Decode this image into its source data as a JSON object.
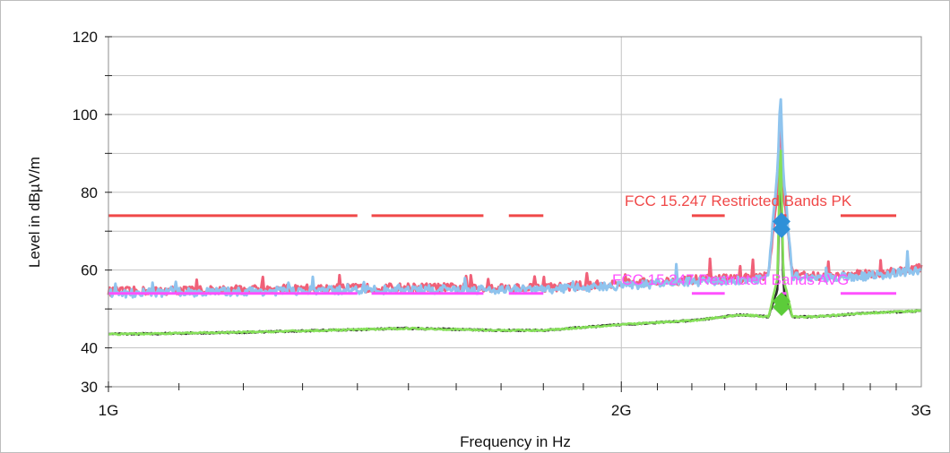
{
  "chart_data": {
    "type": "line",
    "xlabel": "Frequency in Hz",
    "ylabel": "Level in dBµV/m",
    "x_scale": "log",
    "xlim": [
      1000000000,
      3000000000
    ],
    "ylim": [
      30,
      120
    ],
    "x_ticks": [
      {
        "value": 1000000000,
        "label": "1G"
      },
      {
        "value": 2000000000,
        "label": "2G"
      },
      {
        "value": 3000000000,
        "label": "3G"
      }
    ],
    "y_ticks": [
      {
        "value": 30,
        "label": "30"
      },
      {
        "value": 40,
        "label": "40"
      },
      {
        "value": 60,
        "label": "60"
      },
      {
        "value": 80,
        "label": "80"
      },
      {
        "value": 100,
        "label": "100"
      },
      {
        "value": 120,
        "label": "120"
      }
    ],
    "grid": true,
    "series": [
      {
        "color": "#f06078",
        "style": "noisy",
        "x": [
          1000000000,
          1200000000,
          1500000000,
          1800000000,
          2000000000,
          2200000000,
          2400000000,
          2440000000,
          2470000000,
          2480000000,
          2490000000,
          2520000000,
          2600000000,
          2800000000,
          3000000000
        ],
        "values": [
          54.5,
          55.0,
          55.5,
          55.5,
          56.5,
          57.5,
          58.0,
          59.0,
          80.0,
          101.0,
          80.0,
          59.0,
          58.5,
          59.0,
          60.5
        ]
      },
      {
        "color": "#8fc4ee",
        "style": "noisy",
        "x": [
          1000000000,
          1200000000,
          1500000000,
          1800000000,
          2000000000,
          2200000000,
          2400000000,
          2440000000,
          2470000000,
          2480000000,
          2490000000,
          2520000000,
          2600000000,
          2800000000,
          3000000000
        ],
        "values": [
          54.0,
          54.5,
          55.0,
          55.0,
          56.0,
          57.0,
          57.5,
          58.5,
          85.0,
          105.0,
          85.0,
          58.5,
          58.0,
          58.5,
          60.0
        ]
      },
      {
        "color": "#2a2a2a",
        "style": "smooth",
        "x": [
          1000000000,
          1200000000,
          1500000000,
          1700000000,
          1800000000,
          2000000000,
          2200000000,
          2350000000,
          2440000000,
          2470000000,
          2480000000,
          2490000000,
          2520000000,
          2600000000,
          2800000000,
          3000000000
        ],
        "values": [
          43.5,
          44.0,
          45.0,
          44.5,
          44.5,
          46.0,
          47.0,
          48.5,
          48.0,
          55.0,
          91.0,
          55.0,
          48.0,
          48.0,
          49.0,
          49.5
        ]
      },
      {
        "color": "#86e05a",
        "style": "smooth",
        "x": [
          1000000000,
          1200000000,
          1500000000,
          1700000000,
          1800000000,
          2000000000,
          2200000000,
          2350000000,
          2440000000,
          2470000000,
          2480000000,
          2490000000,
          2520000000,
          2600000000,
          2800000000,
          3000000000
        ],
        "values": [
          43.5,
          44.0,
          45.0,
          44.5,
          44.5,
          46.0,
          47.0,
          48.5,
          48.0,
          58.0,
          95.0,
          58.0,
          48.0,
          48.0,
          49.0,
          49.5
        ]
      }
    ],
    "limit_lines": [
      {
        "label": "FCC 15.247 Restricted Bands PK",
        "color": "#f04848",
        "value": 74,
        "segments": [
          [
            1000000000,
            1400000000
          ],
          [
            1427000000,
            1660000000
          ],
          [
            1718000000,
            1800000000
          ],
          [
            2200000000,
            2300000000
          ],
          [
            2483500000,
            2500000000
          ],
          [
            2690000000,
            2900000000
          ]
        ]
      },
      {
        "label": "FCC 15.247 Restricted Bands AVG",
        "color": "#ff50ff",
        "value": 54,
        "segments": [
          [
            1000000000,
            1400000000
          ],
          [
            1427000000,
            1660000000
          ],
          [
            1718000000,
            1800000000
          ],
          [
            2200000000,
            2300000000
          ],
          [
            2483500000,
            2500000000
          ],
          [
            2690000000,
            2900000000
          ]
        ]
      }
    ],
    "markers": [
      {
        "x": 2483500000,
        "y": 72.5,
        "color": "#2e90d8"
      },
      {
        "x": 2483500000,
        "y": 70.5,
        "color": "#2e90d8"
      },
      {
        "x": 2483500000,
        "y": 52.0,
        "color": "#5ccc3a"
      },
      {
        "x": 2483500000,
        "y": 50.5,
        "color": "#5ccc3a"
      }
    ]
  }
}
